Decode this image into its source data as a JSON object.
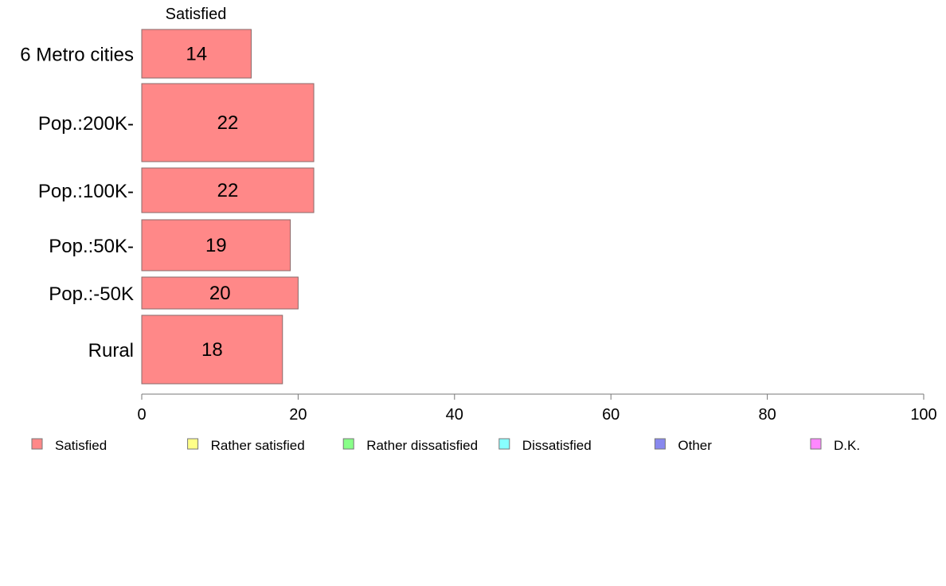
{
  "chart_data": {
    "type": "bar",
    "orientation": "horizontal",
    "stacked": true,
    "categories": [
      "6 Metro cities",
      "Pop.:200K-",
      "Pop.:100K-",
      "Pop.:50K-",
      "Pop.:-50K",
      "Rural"
    ],
    "series": [
      {
        "name": "Satisfied",
        "values": [
          14,
          22,
          22,
          19,
          20,
          18
        ],
        "color": "#ff8888"
      }
    ],
    "series_header": "Satisfied",
    "x_ticks": [
      "0",
      "20",
      "40",
      "60",
      "80",
      "100"
    ],
    "xlim": [
      0,
      100
    ],
    "grid": false,
    "legend_position": "bottom",
    "legend": [
      {
        "label": "Satisfied",
        "color": "#ff8888"
      },
      {
        "label": "Rather satisfied",
        "color": "#ffff88"
      },
      {
        "label": "Rather dissatisfied",
        "color": "#88ff88"
      },
      {
        "label": "Dissatisfied",
        "color": "#88ffff"
      },
      {
        "label": "Other",
        "color": "#8888ee"
      },
      {
        "label": "D.K.",
        "color": "#ff88ff"
      }
    ]
  }
}
